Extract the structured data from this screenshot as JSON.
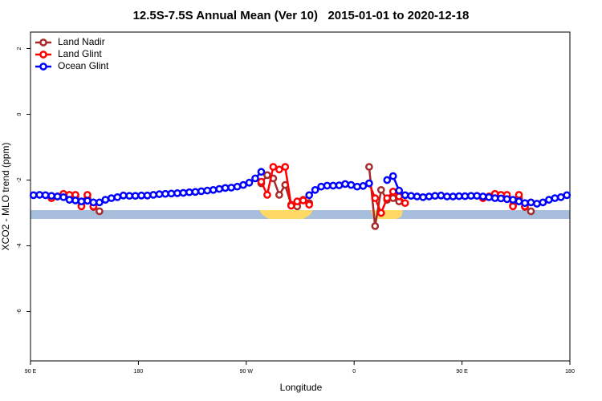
{
  "chart_data": {
    "type": "line",
    "title": "12.5S-7.5S Annual Mean (Ver 10)   2015-01-01 to 2020-12-18",
    "xlabel": "Longitude",
    "ylabel": "XCO2 - MLO trend (ppm)",
    "xlim": [
      90,
      540
    ],
    "xticks": [
      {
        "value": 90,
        "label": "90 E"
      },
      {
        "value": 180,
        "label": "180"
      },
      {
        "value": 270,
        "label": "90 W"
      },
      {
        "value": 360,
        "label": "0"
      },
      {
        "value": 450,
        "label": "90 E"
      },
      {
        "value": 540,
        "label": "180"
      }
    ],
    "ylim": [
      -7.5,
      2.5
    ],
    "yticks": [
      2,
      0,
      -2,
      -4,
      -6
    ],
    "legend": "top-left",
    "x": [
      92.5,
      97.5,
      102.5,
      107.5,
      112.5,
      117.5,
      122.5,
      127.5,
      132.5,
      137.5,
      142.5,
      147.5,
      152.5,
      157.5,
      162.5,
      167.5,
      172.5,
      177.5,
      182.5,
      187.5,
      192.5,
      197.5,
      202.5,
      207.5,
      212.5,
      217.5,
      222.5,
      227.5,
      232.5,
      237.5,
      242.5,
      247.5,
      252.5,
      257.5,
      262.5,
      267.5,
      272.5,
      277.5,
      282.5,
      287.5,
      292.5,
      297.5,
      302.5,
      307.5,
      312.5,
      317.5,
      322.5,
      327.5,
      332.5,
      337.5,
      342.5,
      347.5,
      352.5,
      357.5,
      362.5,
      367.5,
      372.5,
      377.5,
      382.5,
      387.5,
      392.5,
      397.5,
      402.5,
      407.5,
      412.5,
      417.5,
      422.5,
      427.5,
      432.5,
      437.5,
      442.5,
      447.5,
      452.5,
      457.5,
      462.5,
      467.5,
      472.5,
      477.5,
      482.5,
      487.5,
      492.5,
      497.5,
      502.5,
      507.5,
      512.5,
      517.5,
      522.5,
      527.5,
      532.5,
      537.5
    ],
    "series": [
      {
        "name": "Land Nadir",
        "color": "#a52a2a",
        "x": [
          107.5,
          112.5,
          117.5,
          122.5,
          127.5,
          132.5,
          137.5,
          142.5,
          147.5,
          null,
          282.5,
          287.5,
          292.5,
          297.5,
          302.5,
          307.5,
          312.5,
          317.5,
          322.5,
          null,
          372.5,
          377.5,
          382.5,
          387.5,
          392.5,
          397.5,
          null,
          467.5,
          472.5,
          477.5,
          482.5,
          487.5,
          492.5,
          497.5,
          502.5,
          507.5
        ],
        "values": [
          -2.55,
          -2.5,
          -2.45,
          -2.47,
          -2.5,
          -2.78,
          -2.55,
          -2.82,
          -2.95,
          null,
          -2.1,
          -1.85,
          -1.95,
          -2.45,
          -2.15,
          -2.75,
          -2.8,
          -2.6,
          -2.7,
          null,
          -1.6,
          -3.4,
          -2.3,
          -2.6,
          -2.55,
          -2.65,
          null,
          -2.55,
          -2.5,
          -2.45,
          -2.47,
          -2.5,
          -2.78,
          -2.55,
          -2.82,
          -2.95
        ]
      },
      {
        "name": "Land Glint",
        "color": "#ff0000",
        "x": [
          107.5,
          112.5,
          117.5,
          122.5,
          127.5,
          132.5,
          137.5,
          142.5,
          null,
          282.5,
          287.5,
          292.5,
          297.5,
          302.5,
          307.5,
          312.5,
          317.5,
          322.5,
          null,
          372.5,
          377.5,
          382.5,
          387.5,
          392.5,
          397.5,
          402.5,
          null,
          467.5,
          472.5,
          477.5,
          482.5,
          487.5,
          492.5,
          497.5,
          502.5
        ],
        "values": [
          -2.55,
          -2.5,
          -2.42,
          -2.45,
          -2.45,
          -2.8,
          -2.45,
          -2.8,
          null,
          -2.05,
          -2.45,
          -1.6,
          -1.68,
          -1.6,
          -2.78,
          -2.65,
          -2.62,
          -2.75,
          null,
          -2.1,
          -2.55,
          -3.0,
          -2.55,
          -2.35,
          -2.5,
          -2.7,
          null,
          -2.55,
          -2.5,
          -2.42,
          -2.45,
          -2.45,
          -2.8,
          -2.45,
          -2.8
        ]
      },
      {
        "name": "Ocean Glint",
        "color": "#0000ff",
        "values": [
          -2.46,
          -2.45,
          -2.46,
          -2.48,
          -2.5,
          -2.52,
          -2.6,
          -2.62,
          -2.65,
          -2.63,
          -2.68,
          -2.68,
          -2.6,
          -2.55,
          -2.52,
          -2.47,
          -2.48,
          -2.48,
          -2.47,
          -2.47,
          -2.45,
          -2.43,
          -2.42,
          -2.41,
          -2.4,
          -2.39,
          -2.37,
          -2.36,
          -2.34,
          -2.32,
          -2.3,
          -2.27,
          -2.24,
          -2.23,
          -2.2,
          -2.15,
          -2.08,
          -1.95,
          -1.75,
          null,
          null,
          null,
          null,
          null,
          null,
          null,
          -2.46,
          -2.3,
          -2.2,
          -2.17,
          -2.17,
          -2.16,
          -2.12,
          -2.15,
          -2.2,
          -2.18,
          -2.1,
          null,
          null,
          -2.0,
          -1.88,
          -2.32,
          -2.46,
          -2.48,
          -2.5,
          -2.52,
          -2.5,
          -2.48,
          -2.47,
          -2.5,
          -2.5,
          -2.49,
          -2.49,
          -2.48,
          -2.48,
          -2.5,
          -2.52,
          -2.55,
          -2.56,
          -2.58,
          -2.6,
          -2.65,
          -2.7,
          -2.68,
          -2.72,
          -2.68,
          -2.6,
          -2.55,
          -2.52,
          -2.46
        ]
      }
    ]
  }
}
